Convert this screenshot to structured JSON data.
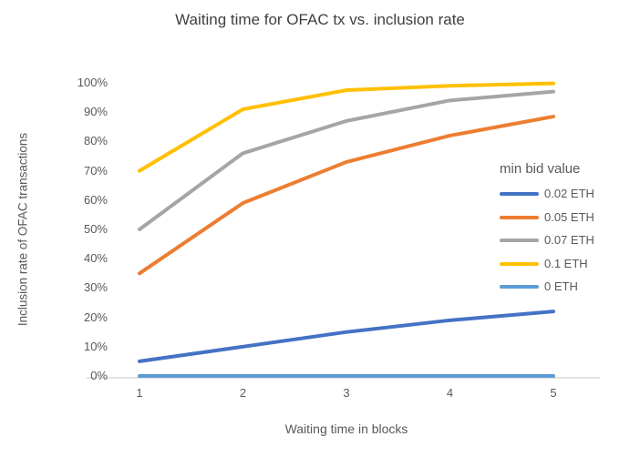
{
  "title": "Waiting time for OFAC tx vs. inclusion rate",
  "chart_data": {
    "type": "line",
    "title": "Waiting time for OFAC tx vs. inclusion rate",
    "xlabel": "Waiting time in blocks",
    "ylabel": "Inclusion rate of OFAC transactions",
    "x": [
      1,
      2,
      3,
      4,
      5
    ],
    "x_tick_labels": [
      "1",
      "2",
      "3",
      "4",
      "5"
    ],
    "xlim": [
      1,
      5
    ],
    "ylim": [
      0,
      100
    ],
    "y_ticks_percent": [
      0,
      10,
      20,
      30,
      40,
      50,
      60,
      70,
      80,
      90,
      100
    ],
    "y_tick_labels": [
      "0%",
      "10%",
      "20%",
      "30%",
      "40%",
      "50%",
      "60%",
      "70%",
      "80%",
      "90%",
      "100%"
    ],
    "grid": false,
    "legend": {
      "title": "min bid value",
      "position": "right"
    },
    "series": [
      {
        "name": "0.02 ETH",
        "color": "#4472C4",
        "values": [
          5,
          10,
          15,
          19,
          22
        ]
      },
      {
        "name": "0.05 ETH",
        "color": "#ED7D31",
        "values": [
          35,
          59,
          73,
          82,
          88.5
        ]
      },
      {
        "name": "0.07 ETH",
        "color": "#A5A5A5",
        "values": [
          50,
          76,
          87,
          94,
          97
        ]
      },
      {
        "name": "0.1 ETH",
        "color": "#FFC000",
        "values": [
          70,
          91,
          97.5,
          99,
          99.8
        ]
      },
      {
        "name": "0 ETH",
        "color": "#5B9BD5",
        "values": [
          0,
          0,
          0,
          0,
          0
        ]
      }
    ],
    "axis_color": "#D9D9D9",
    "text_color": "#595959"
  }
}
